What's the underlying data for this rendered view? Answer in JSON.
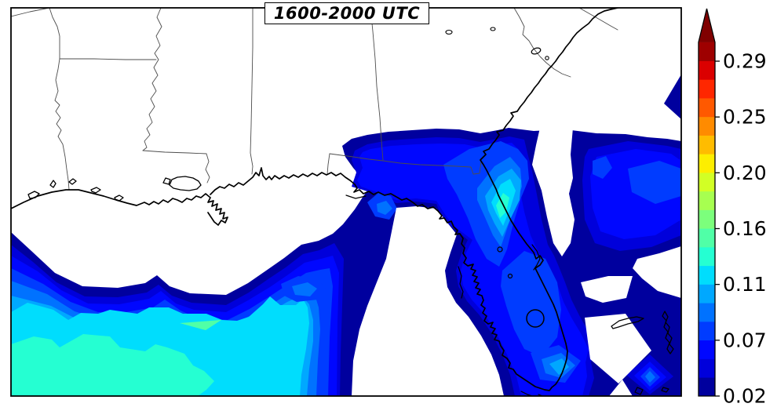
{
  "title": {
    "label": "1600-2000 UTC"
  },
  "chart_data": {
    "type": "heatmap",
    "subtype": "filled-contour-map",
    "title": "1600-2000 UTC",
    "region_depicted": "Southeastern United States, Gulf of Mexico and Florida",
    "legend_position": "right",
    "grid": false,
    "colorbar": {
      "orientation": "vertical",
      "extend": "max",
      "tick_labels_bottom_to_top": [
        "0.02",
        "0.07",
        "0.11",
        "0.16",
        "0.20",
        "0.25",
        "0.29"
      ],
      "tick_values_bottom_to_top": [
        0.02,
        0.065,
        0.11,
        0.155,
        0.2,
        0.245,
        0.29
      ],
      "level_min": 0.02,
      "level_step": 0.015,
      "segment_colors_bottom_to_top": [
        "#00009E",
        "#0000DB",
        "#0007FF",
        "#003CFF",
        "#0072FF",
        "#00A8FF",
        "#00DDFD",
        "#25FFD2",
        "#50FFA7",
        "#7CFF7C",
        "#A7FF50",
        "#D2FF25",
        "#FDEE00",
        "#FFBC00",
        "#FF8B00",
        "#FF5900",
        "#FF2700",
        "#DB0000",
        "#9E0000"
      ],
      "arrow_color": "#800000",
      "outline_color": "#000000",
      "tick_label_color": "#000000"
    },
    "map_colors": {
      "background": "#ffffff",
      "coastline": "#000000",
      "state_borders": "#4d4d4d",
      "frame": "#000000"
    },
    "contour_values_visible_on_map": [
      0.02,
      0.035,
      0.05,
      0.065,
      0.08,
      0.095,
      0.11,
      0.125,
      0.14
    ]
  }
}
